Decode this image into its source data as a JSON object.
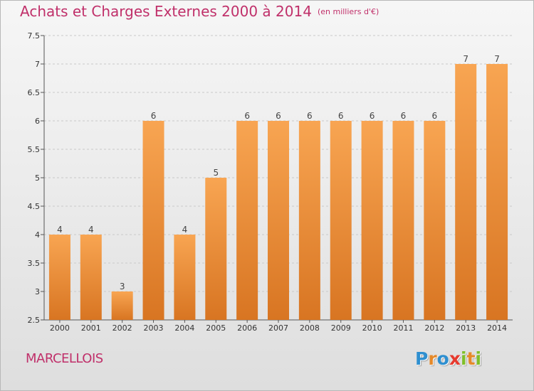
{
  "header": {
    "title": "Achats et Charges Externes 2000 à 2014",
    "unit": "(en milliers d'€)"
  },
  "commune": "MARCELLOIS",
  "logo": {
    "letters": [
      {
        "ch": "P",
        "color": "#2e8fd0"
      },
      {
        "ch": "r",
        "color": "#e5892a"
      },
      {
        "ch": "o",
        "color": "#2e8fd0"
      },
      {
        "ch": "x",
        "color": "#e63a2e"
      },
      {
        "ch": "i",
        "color": "#7fbf2a"
      },
      {
        "ch": "t",
        "color": "#e5892a"
      },
      {
        "ch": "i",
        "color": "#7fbf2a"
      }
    ]
  },
  "colors": {
    "bar_top": "#f8a552",
    "bar_bottom": "#d87522",
    "title": "#c0306a"
  },
  "chart_data": {
    "type": "bar",
    "title": "Achats et Charges Externes 2000 à 2014",
    "xlabel": "",
    "ylabel": "",
    "categories": [
      "2000",
      "2001",
      "2002",
      "2003",
      "2004",
      "2005",
      "2006",
      "2007",
      "2008",
      "2009",
      "2010",
      "2011",
      "2012",
      "2013",
      "2014"
    ],
    "values": [
      4,
      4,
      3,
      6,
      4,
      5,
      6,
      6,
      6,
      6,
      6,
      6,
      6,
      7,
      7
    ],
    "value_labels": [
      "4",
      "4",
      "3",
      "6",
      "4",
      "5",
      "6",
      "6",
      "6",
      "6",
      "6",
      "6",
      "6",
      "7",
      "7"
    ],
    "ylim": [
      2.5,
      7.5
    ],
    "yticks": [
      2.5,
      3,
      3.5,
      4,
      4.5,
      5,
      5.5,
      6,
      6.5,
      7,
      7.5
    ],
    "ytick_labels": [
      "2.5",
      "3",
      "3.5",
      "4",
      "4.5",
      "5",
      "5.5",
      "6",
      "6.5",
      "7",
      "7.5"
    ],
    "grid": true
  }
}
